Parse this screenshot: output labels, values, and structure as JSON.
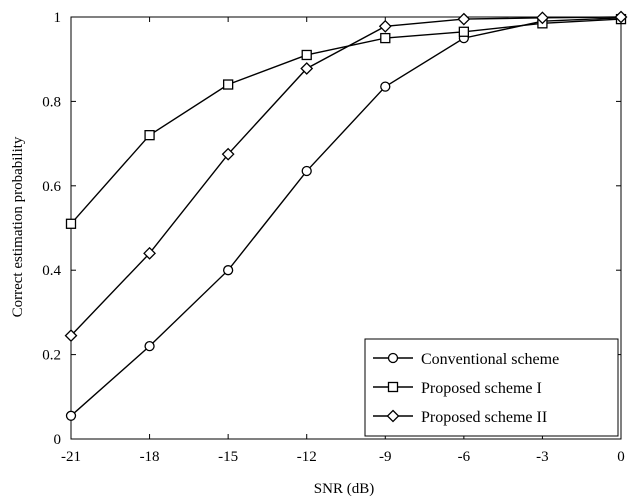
{
  "chart_data": {
    "type": "line",
    "xlabel": "SNR (dB)",
    "ylabel": "Correct estimation probability",
    "x": [
      -21,
      -18,
      -15,
      -12,
      -9,
      -6,
      -3,
      0
    ],
    "xticks": [
      "-21",
      "-18",
      "-15",
      "-12",
      "-9",
      "-6",
      "-3",
      "0"
    ],
    "yticks": [
      "0",
      "0.2",
      "0.4",
      "0.6",
      "0.8",
      "1"
    ],
    "xlim": [
      -21,
      0
    ],
    "ylim": [
      0,
      1
    ],
    "grid": false,
    "legend_position": "bottom-right",
    "series": [
      {
        "name": "Conventional scheme",
        "marker": "circle",
        "values": [
          0.055,
          0.22,
          0.4,
          0.635,
          0.835,
          0.95,
          0.99,
          0.998
        ]
      },
      {
        "name": "Proposed scheme I",
        "marker": "square",
        "values": [
          0.51,
          0.72,
          0.84,
          0.91,
          0.95,
          0.965,
          0.985,
          0.995
        ]
      },
      {
        "name": "Proposed scheme II",
        "marker": "diamond",
        "values": [
          0.245,
          0.44,
          0.675,
          0.878,
          0.978,
          0.995,
          0.998,
          1.0
        ]
      }
    ]
  }
}
